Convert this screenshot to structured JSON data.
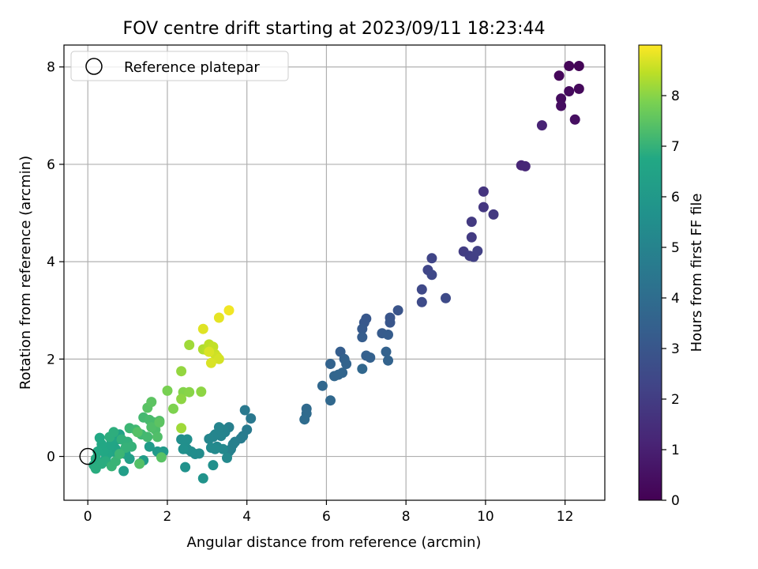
{
  "chart_data": {
    "type": "scatter",
    "title": "FOV centre drift starting at 2023/09/11 18:23:44",
    "xlabel": "Angular distance from reference (arcmin)",
    "ylabel": "Rotation from reference (arcmin)",
    "xlim": [
      -0.6,
      13.0
    ],
    "ylim": [
      -0.9,
      8.45
    ],
    "xticks": [
      0,
      2,
      4,
      6,
      8,
      10,
      12
    ],
    "yticks": [
      0,
      2,
      4,
      6,
      8
    ],
    "grid": true,
    "legend": {
      "placement": "upper-left",
      "entries": [
        "Reference platepar"
      ]
    },
    "reference_point": {
      "x": 0,
      "y": 0,
      "label": "Reference platepar"
    },
    "colorbar": {
      "label": "Hours from first FF file",
      "colormap": "viridis",
      "range": [
        0,
        9.0
      ],
      "ticks": [
        0,
        1,
        2,
        3,
        4,
        5,
        6,
        7,
        8
      ]
    },
    "points": [
      [
        12.35,
        8.02,
        0.1
      ],
      [
        12.1,
        8.02,
        0.15
      ],
      [
        11.85,
        7.82,
        0.2
      ],
      [
        12.35,
        7.55,
        0.25
      ],
      [
        12.1,
        7.5,
        0.3
      ],
      [
        11.9,
        7.35,
        0.35
      ],
      [
        11.9,
        7.2,
        0.4
      ],
      [
        12.25,
        6.92,
        0.45
      ],
      [
        11.42,
        6.8,
        1.1
      ],
      [
        10.9,
        5.98,
        1.2
      ],
      [
        11.0,
        5.96,
        1.25
      ],
      [
        9.95,
        5.44,
        1.7
      ],
      [
        9.95,
        5.12,
        1.8
      ],
      [
        10.2,
        4.97,
        1.85
      ],
      [
        9.65,
        4.82,
        1.9
      ],
      [
        9.65,
        4.5,
        1.95
      ],
      [
        9.45,
        4.21,
        2.0
      ],
      [
        9.6,
        4.12,
        2.05
      ],
      [
        9.7,
        4.1,
        2.1
      ],
      [
        9.8,
        4.22,
        2.15
      ],
      [
        8.65,
        4.07,
        2.3
      ],
      [
        8.55,
        3.83,
        2.35
      ],
      [
        8.65,
        3.73,
        2.4
      ],
      [
        8.4,
        3.43,
        2.45
      ],
      [
        9.0,
        3.25,
        2.5
      ],
      [
        8.4,
        3.17,
        2.55
      ],
      [
        7.8,
        3.0,
        2.9
      ],
      [
        7.6,
        2.85,
        2.95
      ],
      [
        7.6,
        2.75,
        3.0
      ],
      [
        7.0,
        2.83,
        3.05
      ],
      [
        6.95,
        2.75,
        3.1
      ],
      [
        6.9,
        2.62,
        3.15
      ],
      [
        7.4,
        2.53,
        3.2
      ],
      [
        7.55,
        2.5,
        3.25
      ],
      [
        6.9,
        2.45,
        3.3
      ],
      [
        6.35,
        2.15,
        3.35
      ],
      [
        7.0,
        2.07,
        3.4
      ],
      [
        7.1,
        2.03,
        3.45
      ],
      [
        6.45,
        2.0,
        3.5
      ],
      [
        7.5,
        2.15,
        3.5
      ],
      [
        7.55,
        1.97,
        3.55
      ],
      [
        6.1,
        1.9,
        3.55
      ],
      [
        6.5,
        1.9,
        3.6
      ],
      [
        6.4,
        1.72,
        3.65
      ],
      [
        6.2,
        1.65,
        3.7
      ],
      [
        6.3,
        1.68,
        3.7
      ],
      [
        6.9,
        1.8,
        3.75
      ],
      [
        5.9,
        1.45,
        3.75
      ],
      [
        6.1,
        1.15,
        3.8
      ],
      [
        5.5,
        0.98,
        3.85
      ],
      [
        5.5,
        0.88,
        3.9
      ],
      [
        5.45,
        0.76,
        3.95
      ],
      [
        4.1,
        0.78,
        4.5
      ],
      [
        3.95,
        0.95,
        4.55
      ],
      [
        4.0,
        0.55,
        4.6
      ],
      [
        3.9,
        0.42,
        4.65
      ],
      [
        3.85,
        0.37,
        4.7
      ],
      [
        3.7,
        0.3,
        4.75
      ],
      [
        3.55,
        0.6,
        4.8
      ],
      [
        3.65,
        0.25,
        4.85
      ],
      [
        3.6,
        0.15,
        4.85
      ],
      [
        3.55,
        0.1,
        4.9
      ],
      [
        3.45,
        0.5,
        4.95
      ],
      [
        3.4,
        0.55,
        5.0
      ],
      [
        3.35,
        0.42,
        5.05
      ],
      [
        3.3,
        0.6,
        5.05
      ],
      [
        3.2,
        0.45,
        5.1
      ],
      [
        3.15,
        0.4,
        5.1
      ],
      [
        3.05,
        0.36,
        5.15
      ],
      [
        3.25,
        0.2,
        5.2
      ],
      [
        3.4,
        0.15,
        5.2
      ],
      [
        3.5,
        -0.03,
        5.25
      ],
      [
        3.1,
        0.18,
        5.3
      ],
      [
        3.2,
        0.15,
        5.3
      ],
      [
        2.7,
        0.05,
        5.35
      ],
      [
        2.8,
        0.06,
        5.4
      ],
      [
        2.6,
        0.1,
        5.45
      ],
      [
        2.5,
        0.15,
        5.45
      ],
      [
        2.35,
        0.35,
        5.5
      ],
      [
        2.5,
        0.35,
        5.55
      ],
      [
        2.45,
        0.3,
        5.55
      ],
      [
        2.4,
        0.15,
        5.6
      ],
      [
        3.15,
        -0.18,
        5.6
      ],
      [
        2.45,
        -0.22,
        5.65
      ],
      [
        2.9,
        -0.45,
        5.7
      ],
      [
        1.9,
        0.1,
        6.0
      ],
      [
        1.75,
        0.1,
        6.05
      ],
      [
        1.55,
        0.2,
        6.1
      ],
      [
        1.4,
        -0.08,
        6.15
      ],
      [
        1.3,
        -0.15,
        6.2
      ],
      [
        0.9,
        -0.3,
        6.25
      ],
      [
        1.05,
        -0.05,
        6.3
      ],
      [
        0.95,
        0.05,
        6.35
      ],
      [
        0.8,
        0.45,
        6.4
      ],
      [
        0.75,
        0.35,
        6.45
      ],
      [
        0.7,
        0.15,
        6.5
      ],
      [
        0.65,
        0.1,
        6.55
      ],
      [
        0.6,
        0.3,
        6.6
      ],
      [
        0.55,
        0.2,
        6.6
      ],
      [
        0.5,
        0.05,
        6.65
      ],
      [
        0.45,
        -0.05,
        6.65
      ],
      [
        0.4,
        0.1,
        6.7
      ],
      [
        0.35,
        0.25,
        6.7
      ],
      [
        0.3,
        0.38,
        6.75
      ],
      [
        0.25,
        0.1,
        6.75
      ],
      [
        0.2,
        -0.05,
        6.8
      ],
      [
        0.15,
        -0.18,
        6.8
      ],
      [
        0.2,
        -0.25,
        6.85
      ],
      [
        0.35,
        -0.15,
        6.85
      ],
      [
        0.45,
        -0.1,
        6.85
      ],
      [
        0.55,
        0.4,
        6.9
      ],
      [
        0.65,
        0.5,
        6.9
      ],
      [
        0.85,
        0.35,
        6.95
      ],
      [
        1.0,
        0.3,
        6.95
      ],
      [
        1.1,
        0.2,
        7.0
      ],
      [
        0.95,
        0.18,
        7.0
      ],
      [
        0.6,
        -0.2,
        7.05
      ],
      [
        0.7,
        -0.1,
        7.05
      ],
      [
        0.8,
        0.05,
        7.1
      ],
      [
        1.05,
        0.58,
        7.1
      ],
      [
        1.2,
        0.55,
        7.15
      ],
      [
        1.35,
        0.45,
        7.15
      ],
      [
        1.5,
        0.4,
        7.2
      ],
      [
        1.4,
        0.8,
        7.2
      ],
      [
        1.55,
        0.75,
        7.25
      ],
      [
        1.65,
        0.7,
        7.25
      ],
      [
        1.8,
        0.73,
        7.3
      ],
      [
        1.7,
        0.55,
        7.3
      ],
      [
        1.75,
        0.4,
        7.35
      ],
      [
        1.6,
        0.6,
        7.35
      ],
      [
        1.25,
        0.5,
        7.4
      ],
      [
        1.3,
        -0.15,
        7.4
      ],
      [
        1.85,
        -0.02,
        7.45
      ],
      [
        1.5,
        1.0,
        7.45
      ],
      [
        1.6,
        1.12,
        7.5
      ],
      [
        1.8,
        0.7,
        7.5
      ],
      [
        2.0,
        1.35,
        7.85
      ],
      [
        2.15,
        0.98,
        7.9
      ],
      [
        2.4,
        1.32,
        7.95
      ],
      [
        2.55,
        1.32,
        8.0
      ],
      [
        2.85,
        1.33,
        8.05
      ],
      [
        2.35,
        1.18,
        8.05
      ],
      [
        2.35,
        1.75,
        8.1
      ],
      [
        2.55,
        2.29,
        8.2
      ],
      [
        2.35,
        0.58,
        8.2
      ],
      [
        2.9,
        2.2,
        8.35
      ],
      [
        3.0,
        2.18,
        8.4
      ],
      [
        3.05,
        2.3,
        8.45
      ],
      [
        3.15,
        2.25,
        8.5
      ],
      [
        3.2,
        2.1,
        8.55
      ],
      [
        3.25,
        2.05,
        8.6
      ],
      [
        3.3,
        2.0,
        8.65
      ],
      [
        3.1,
        1.92,
        8.7
      ],
      [
        3.05,
        2.15,
        8.7
      ],
      [
        2.9,
        2.62,
        8.75
      ],
      [
        3.3,
        2.85,
        8.8
      ],
      [
        3.55,
        3.0,
        8.9
      ]
    ]
  }
}
